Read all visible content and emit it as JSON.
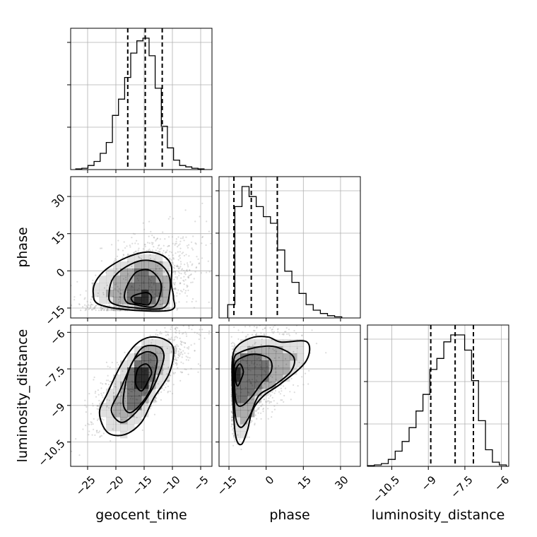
{
  "chart_data": {
    "type": "corner",
    "parameters": [
      {
        "key": "geocent_time",
        "label": "geocent_time",
        "range": [
          -28,
          -3
        ],
        "ticks": [
          -25,
          -20,
          -15,
          -10,
          -5
        ],
        "quantiles": [
          -17.9,
          -14.8,
          -11.8
        ],
        "histogram": [
          0.5,
          1,
          3,
          6,
          12,
          20,
          40,
          52,
          68,
          86,
          95,
          97,
          84,
          60,
          32,
          16,
          7,
          3,
          2,
          1,
          0.5
        ]
      },
      {
        "key": "phase",
        "label": "phase",
        "range": [
          -19,
          38
        ],
        "ticks": [
          -15,
          0,
          15,
          30
        ],
        "quantiles": [
          -13,
          -6,
          4.5
        ],
        "histogram": [
          12,
          100,
          118,
          109,
          100,
          91,
          85,
          61,
          42,
          32,
          22,
          12,
          7,
          4,
          2,
          1
        ]
      },
      {
        "key": "luminosity_distance",
        "label": "luminosity_distance",
        "range": [
          -11.5,
          -5.7
        ],
        "ticks": [
          -10.5,
          -9.0,
          -7.5,
          -6.0
        ],
        "quantiles": [
          -8.9,
          -7.9,
          -7.15
        ],
        "histogram": [
          0.5,
          1,
          2,
          5,
          11,
          18,
          28,
          40,
          52,
          70,
          78,
          90,
          95,
          95,
          84,
          62,
          33,
          12,
          3,
          1
        ]
      }
    ],
    "pairs": [
      {
        "x": "geocent_time",
        "y": "phase",
        "contours": [
          [
            [
              -17.4,
              -15.8
            ],
            [
              -10.3,
              -15.8
            ],
            [
              -9.8,
              -11
            ],
            [
              -10.2,
              -5
            ],
            [
              -10.2,
              2
            ],
            [
              -11.6,
              6
            ],
            [
              -14.5,
              7.6
            ],
            [
              -18,
              5.5
            ],
            [
              -21.5,
              1
            ],
            [
              -23.5,
              -4
            ],
            [
              -24,
              -9
            ],
            [
              -23,
              -13.5
            ]
          ],
          [
            [
              -17.1,
              -14.8
            ],
            [
              -11.7,
              -15
            ],
            [
              -10.5,
              -9
            ],
            [
              -10.6,
              -2
            ],
            [
              -12.4,
              3
            ],
            [
              -15.3,
              4.2
            ],
            [
              -18.3,
              1.5
            ],
            [
              -20.5,
              -3
            ],
            [
              -21.2,
              -9
            ],
            [
              -20.7,
              -13
            ]
          ],
          [
            [
              -16.6,
              -13.6
            ],
            [
              -13.3,
              -14.4
            ],
            [
              -12.1,
              -9
            ],
            [
              -12.2,
              -4
            ],
            [
              -14,
              0.2
            ],
            [
              -16.3,
              -0.4
            ],
            [
              -17.8,
              -5
            ],
            [
              -18.5,
              -10
            ],
            [
              -18,
              -12.8
            ]
          ],
          [
            [
              -15.8,
              -13.3
            ],
            [
              -14.2,
              -13.6
            ],
            [
              -13.7,
              -10.5
            ],
            [
              -14.5,
              -8.8
            ],
            [
              -16.4,
              -9.6
            ],
            [
              -17.3,
              -11
            ],
            [
              -16.8,
              -12.8
            ]
          ]
        ]
      },
      {
        "x": "geocent_time",
        "y": "luminosity_distance",
        "contours": [
          [
            [
              -22.9,
              -9.3
            ],
            [
              -21.5,
              -8.5
            ],
            [
              -19,
              -7.3
            ],
            [
              -16.5,
              -6.5
            ],
            [
              -14,
              -6.2
            ],
            [
              -11.3,
              -6.3
            ],
            [
              -9.8,
              -6.7
            ],
            [
              -10.6,
              -7.7
            ],
            [
              -13.3,
              -8.7
            ],
            [
              -15.5,
              -9.7
            ],
            [
              -18.5,
              -10.2
            ],
            [
              -21.5,
              -10.1
            ]
          ],
          [
            [
              -20.8,
              -9.2
            ],
            [
              -19.3,
              -8.4
            ],
            [
              -17,
              -7.2
            ],
            [
              -15.1,
              -6.6
            ],
            [
              -12.4,
              -6.6
            ],
            [
              -11.5,
              -7
            ],
            [
              -12.5,
              -7.8
            ],
            [
              -14,
              -8.5
            ],
            [
              -16.5,
              -9.3
            ],
            [
              -19,
              -9.7
            ]
          ],
          [
            [
              -18.7,
              -8.9
            ],
            [
              -18,
              -7.8
            ],
            [
              -16.7,
              -7.1
            ],
            [
              -14.5,
              -6.8
            ],
            [
              -12.8,
              -7
            ],
            [
              -13,
              -7.6
            ],
            [
              -14,
              -8.4
            ],
            [
              -15.8,
              -9
            ],
            [
              -17.6,
              -9.3
            ]
          ],
          [
            [
              -16.5,
              -8.1
            ],
            [
              -16.1,
              -7.5
            ],
            [
              -14.6,
              -7.3
            ],
            [
              -13.7,
              -7.6
            ],
            [
              -14.1,
              -7.9
            ],
            [
              -15.4,
              -8.4
            ]
          ]
        ]
      },
      {
        "x": "phase",
        "y": "luminosity_distance",
        "contours": [
          [
            [
              -13.6,
              -8.3
            ],
            [
              -13.5,
              -7
            ],
            [
              -11,
              -6.5
            ],
            [
              -5,
              -6.2
            ],
            [
              1,
              -6.2
            ],
            [
              6,
              -6.4
            ],
            [
              16.5,
              -6.4
            ],
            [
              16,
              -7.2
            ],
            [
              6,
              -8.1
            ],
            [
              -1,
              -8.6
            ],
            [
              -5.5,
              -9.2
            ],
            [
              -7.5,
              -10
            ],
            [
              -10,
              -10.6
            ],
            [
              -12.4,
              -10.2
            ]
          ],
          [
            [
              -13.1,
              -8.2
            ],
            [
              -13,
              -7.1
            ],
            [
              -10,
              -6.8
            ],
            [
              -3,
              -6.6
            ],
            [
              4,
              -6.6
            ],
            [
              11,
              -7
            ],
            [
              10,
              -7.6
            ],
            [
              3,
              -8.2
            ],
            [
              -3,
              -8.6
            ],
            [
              -6.5,
              -9.4
            ],
            [
              -10,
              -9.9
            ],
            [
              -12.3,
              -9.5
            ]
          ],
          [
            [
              -12.8,
              -8.1
            ],
            [
              -12.6,
              -7.3
            ],
            [
              -9,
              -7
            ],
            [
              -4,
              -6.9
            ],
            [
              1.5,
              -7.1
            ],
            [
              2,
              -7.6
            ],
            [
              -2,
              -8.1
            ],
            [
              -5.5,
              -8.6
            ],
            [
              -9.5,
              -9
            ],
            [
              -12,
              -8.9
            ]
          ],
          [
            [
              -12.4,
              -7.9
            ],
            [
              -12.1,
              -7.5
            ],
            [
              -10.5,
              -7.3
            ],
            [
              -9.2,
              -7.6
            ],
            [
              -10,
              -7.9
            ],
            [
              -11.5,
              -8.2
            ]
          ]
        ]
      }
    ],
    "grid": true,
    "histogram_style": "step",
    "quantile_lines": "dashed"
  }
}
